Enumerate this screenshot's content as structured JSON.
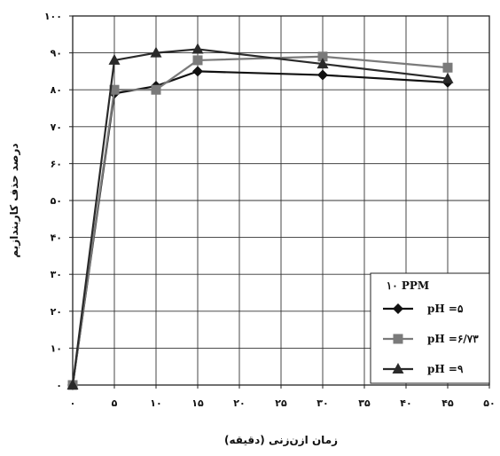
{
  "chart_data": {
    "type": "line",
    "xlabel": "زمان ازن‌زنی (دقیقه)",
    "ylabel": "درصد حذف کاربندازیم",
    "x_ticks": [
      "۰",
      "۵",
      "۱۰",
      "۱۵",
      "۲۰",
      "۲۵",
      "۳۰",
      "۳۵",
      "۴۰",
      "۴۵",
      "۵۰"
    ],
    "x_tick_values": [
      0,
      5,
      10,
      15,
      20,
      25,
      30,
      35,
      40,
      45,
      50
    ],
    "y_ticks": [
      "۰",
      "۱۰",
      "۲۰",
      "۳۰",
      "۴۰",
      "۵۰",
      "۶۰",
      "۷۰",
      "۸۰",
      "۹۰",
      "۱۰۰"
    ],
    "y_tick_values": [
      0,
      10,
      20,
      30,
      40,
      50,
      60,
      70,
      80,
      90,
      100
    ],
    "xlim": [
      0,
      50
    ],
    "ylim": [
      0,
      100
    ],
    "grid": true,
    "legend": {
      "title": "۱۰ PPM",
      "placement": "bottom-right"
    },
    "series": [
      {
        "name": "pH =۵",
        "marker": "diamond",
        "color": "#111111",
        "x": [
          0,
          5,
          10,
          15,
          30,
          45
        ],
        "y": [
          0,
          79,
          81,
          85,
          84,
          82
        ]
      },
      {
        "name": "pH =۶/۷۳",
        "marker": "square",
        "color": "#7a7a7a",
        "x": [
          0,
          5,
          10,
          15,
          30,
          45
        ],
        "y": [
          0,
          80,
          80,
          88,
          89,
          86
        ]
      },
      {
        "name": "pH =۹",
        "marker": "triangle",
        "color": "#2a2a2a",
        "x": [
          0,
          5,
          10,
          15,
          30,
          45
        ],
        "y": [
          0,
          88,
          90,
          91,
          87,
          83
        ]
      }
    ]
  }
}
